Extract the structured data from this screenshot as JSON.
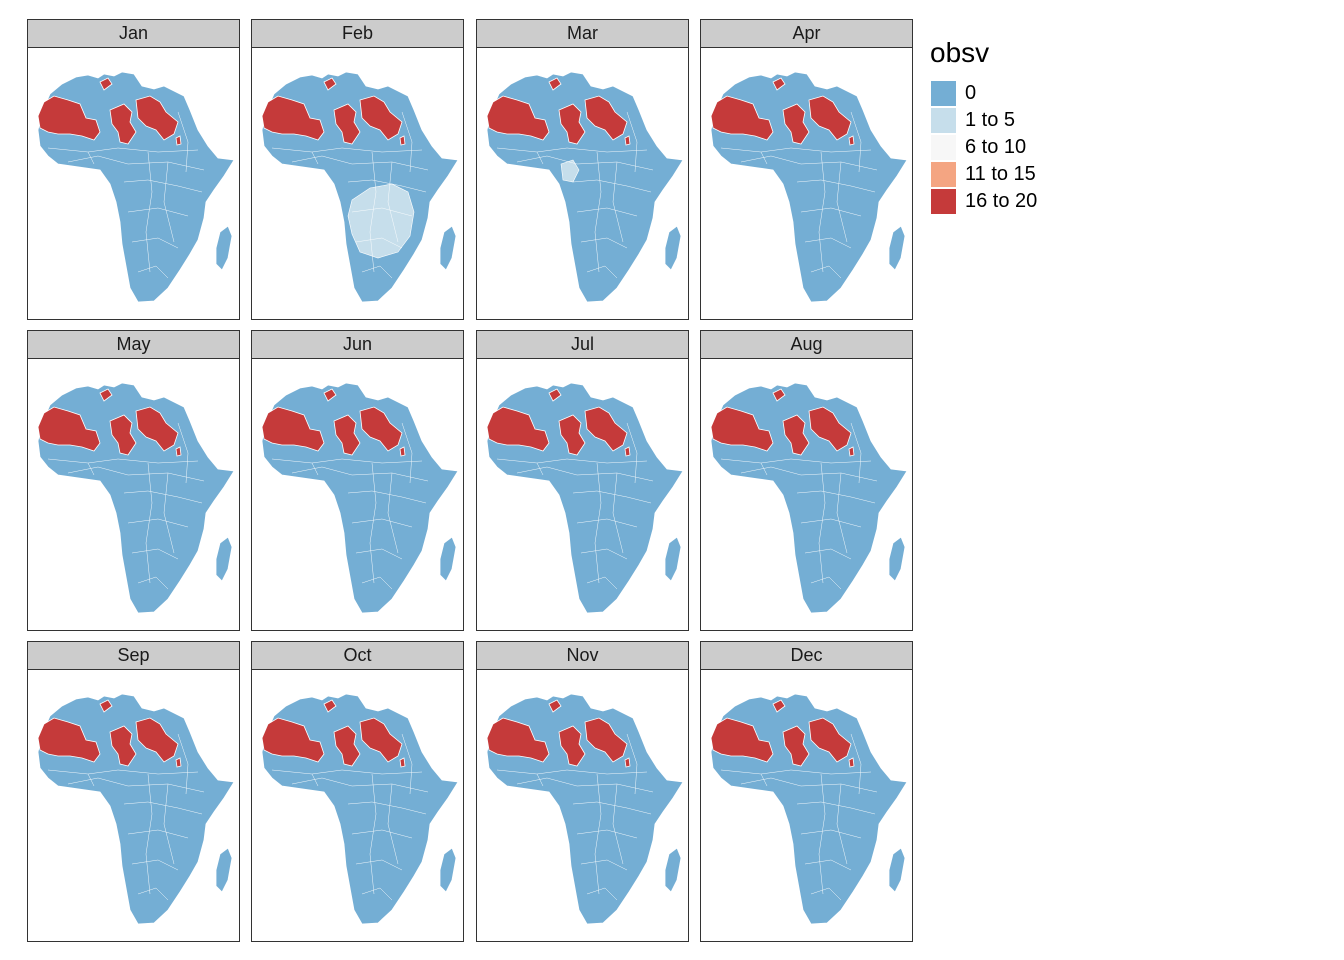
{
  "legend": {
    "title": "obsv",
    "items": [
      {
        "label": "0",
        "color": "#74aed4"
      },
      {
        "label": "1 to 5",
        "color": "#c6deeb"
      },
      {
        "label": "6 to 10",
        "color": "#f7f7f7"
      },
      {
        "label": "11 to 15",
        "color": "#f4a582"
      },
      {
        "label": "16 to 20",
        "color": "#c53a3a"
      }
    ]
  },
  "panels": [
    {
      "month": "Jan",
      "extra": "none"
    },
    {
      "month": "Feb",
      "extra": "central-south"
    },
    {
      "month": "Mar",
      "extra": "small"
    },
    {
      "month": "Apr",
      "extra": "none"
    },
    {
      "month": "May",
      "extra": "none"
    },
    {
      "month": "Jun",
      "extra": "none"
    },
    {
      "month": "Jul",
      "extra": "none"
    },
    {
      "month": "Aug",
      "extra": "none"
    },
    {
      "month": "Sep",
      "extra": "none"
    },
    {
      "month": "Oct",
      "extra": "none"
    },
    {
      "month": "Nov",
      "extra": "none"
    },
    {
      "month": "Dec",
      "extra": "none"
    }
  ]
}
